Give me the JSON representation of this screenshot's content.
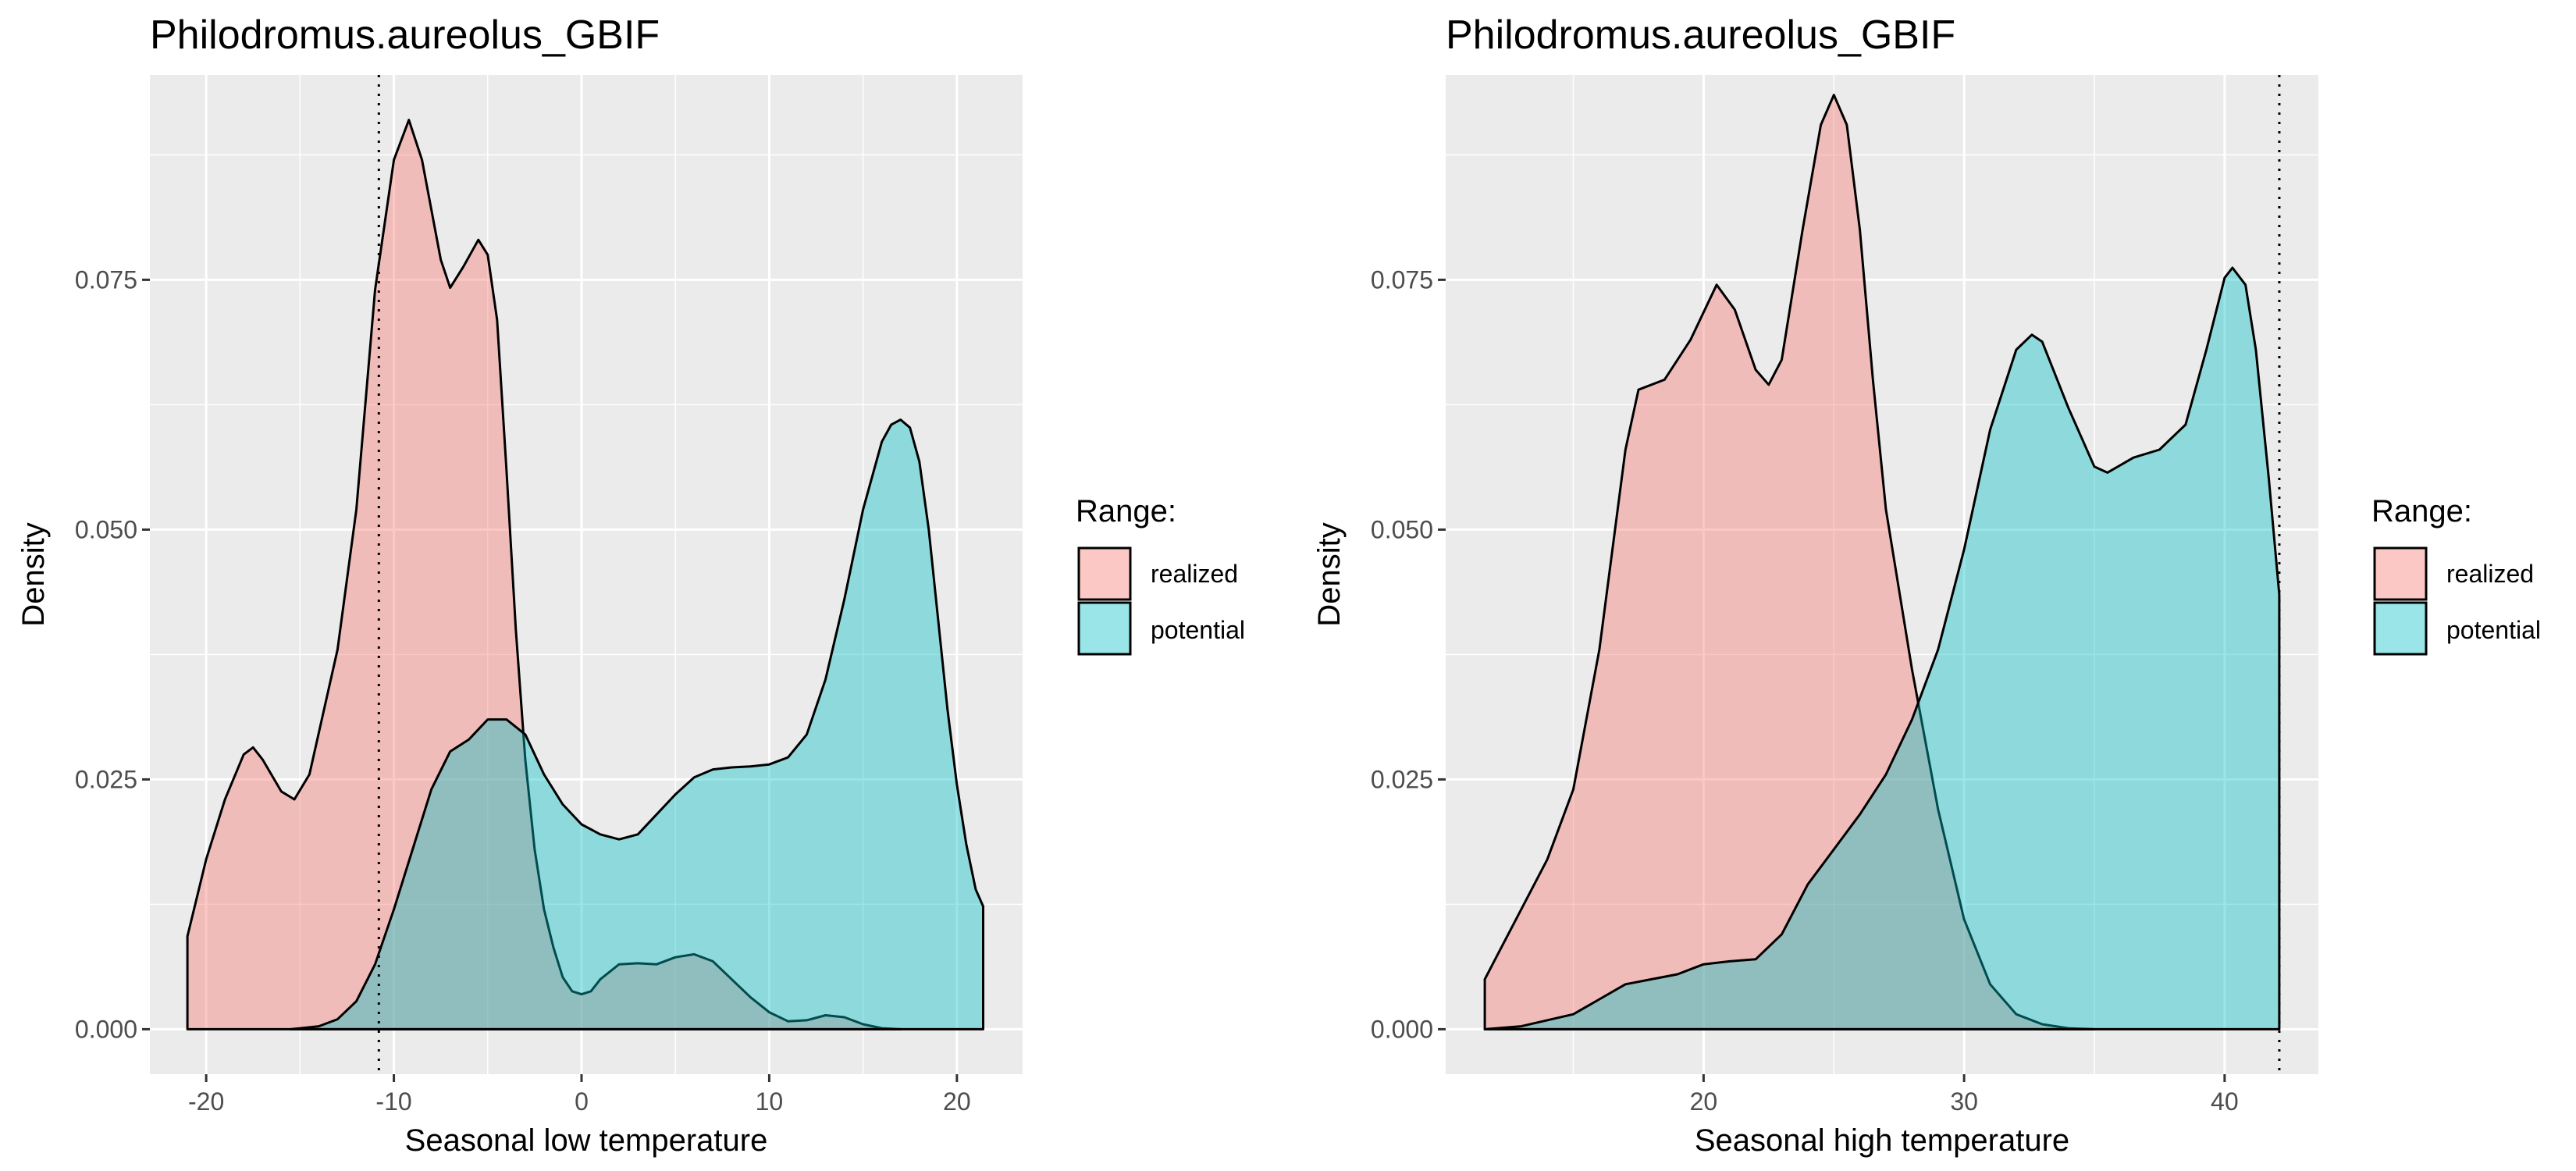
{
  "chart_data": [
    {
      "type": "area",
      "title": "Philodromus.aureolus_GBIF",
      "xlabel": "Seasonal low temperature",
      "ylabel": "Density",
      "xlim": [
        -23,
        23.5
      ],
      "ylim": [
        -0.0045,
        0.0955
      ],
      "x_ticks": [
        -20,
        -10,
        0,
        10,
        20
      ],
      "x_tick_labels": [
        "-20",
        "-10",
        "0",
        "10",
        "20"
      ],
      "y_ticks": [
        0,
        0.025,
        0.05,
        0.075
      ],
      "y_tick_labels": [
        "0.000",
        "0.025",
        "0.050",
        "0.075"
      ],
      "vline": -10.8,
      "grid": true,
      "legend": {
        "title": "Range:",
        "position": "right",
        "entries": [
          {
            "label": "realized",
            "color": "#F8766D"
          },
          {
            "label": "potential",
            "color": "#00BFC4"
          }
        ]
      },
      "series": [
        {
          "key": "realized",
          "color": "#F8766D",
          "points": [
            [
              -21,
              0.0093
            ],
            [
              -20,
              0.017
            ],
            [
              -19,
              0.023
            ],
            [
              -18,
              0.0275
            ],
            [
              -17.5,
              0.0282
            ],
            [
              -17,
              0.027
            ],
            [
              -16,
              0.0238
            ],
            [
              -15.3,
              0.023
            ],
            [
              -14.5,
              0.0255
            ],
            [
              -13,
              0.038
            ],
            [
              -12,
              0.052
            ],
            [
              -11,
              0.074
            ],
            [
              -10,
              0.087
            ],
            [
              -9.2,
              0.091
            ],
            [
              -8.5,
              0.087
            ],
            [
              -7.5,
              0.077
            ],
            [
              -7,
              0.0742
            ],
            [
              -6.3,
              0.0763
            ],
            [
              -5.5,
              0.079
            ],
            [
              -5,
              0.0775
            ],
            [
              -4.5,
              0.071
            ],
            [
              -4,
              0.056
            ],
            [
              -3.5,
              0.04
            ],
            [
              -3,
              0.027
            ],
            [
              -2.5,
              0.018
            ],
            [
              -2,
              0.012
            ],
            [
              -1.5,
              0.0082
            ],
            [
              -1,
              0.0052
            ],
            [
              -0.5,
              0.0038
            ],
            [
              0,
              0.0035
            ],
            [
              0.5,
              0.0038
            ],
            [
              1,
              0.005
            ],
            [
              2,
              0.0065
            ],
            [
              3,
              0.0066
            ],
            [
              4,
              0.0065
            ],
            [
              5,
              0.0072
            ],
            [
              6,
              0.0075
            ],
            [
              7,
              0.0068
            ],
            [
              8,
              0.005
            ],
            [
              9,
              0.0032
            ],
            [
              10,
              0.0017
            ],
            [
              11,
              0.0008
            ],
            [
              12,
              0.0009
            ],
            [
              13,
              0.0014
            ],
            [
              14,
              0.0012
            ],
            [
              15,
              0.0005
            ],
            [
              16,
              0.0001
            ],
            [
              17,
              0
            ]
          ]
        },
        {
          "key": "potential",
          "color": "#00BFC4",
          "points": [
            [
              -15.5,
              0
            ],
            [
              -14,
              0.0003
            ],
            [
              -13,
              0.001
            ],
            [
              -12,
              0.0028
            ],
            [
              -11,
              0.0065
            ],
            [
              -10,
              0.012
            ],
            [
              -9,
              0.018
            ],
            [
              -8,
              0.024
            ],
            [
              -7,
              0.0278
            ],
            [
              -6,
              0.029
            ],
            [
              -5,
              0.031
            ],
            [
              -4,
              0.031
            ],
            [
              -3,
              0.0295
            ],
            [
              -2,
              0.0255
            ],
            [
              -1,
              0.0225
            ],
            [
              0,
              0.0205
            ],
            [
              1,
              0.0195
            ],
            [
              2,
              0.019
            ],
            [
              3,
              0.0195
            ],
            [
              4,
              0.0215
            ],
            [
              5,
              0.0235
            ],
            [
              6,
              0.0252
            ],
            [
              7,
              0.026
            ],
            [
              8,
              0.0262
            ],
            [
              9,
              0.0263
            ],
            [
              10,
              0.0265
            ],
            [
              11,
              0.0272
            ],
            [
              12,
              0.0295
            ],
            [
              13,
              0.035
            ],
            [
              14,
              0.043
            ],
            [
              15,
              0.052
            ],
            [
              16,
              0.0588
            ],
            [
              16.5,
              0.0605
            ],
            [
              17,
              0.061
            ],
            [
              17.5,
              0.0602
            ],
            [
              18,
              0.0568
            ],
            [
              18.5,
              0.05
            ],
            [
              19,
              0.041
            ],
            [
              19.5,
              0.032
            ],
            [
              20,
              0.0245
            ],
            [
              20.5,
              0.0185
            ],
            [
              21,
              0.014
            ],
            [
              21.4,
              0.0123
            ]
          ]
        }
      ]
    },
    {
      "type": "area",
      "title": "Philodromus.aureolus_GBIF",
      "xlabel": "Seasonal high temperature",
      "ylabel": "Density",
      "xlim": [
        10.1,
        43.6
      ],
      "ylim": [
        -0.0045,
        0.0955
      ],
      "x_ticks": [
        20,
        30,
        40
      ],
      "x_tick_labels": [
        "20",
        "30",
        "40"
      ],
      "y_ticks": [
        0,
        0.025,
        0.05,
        0.075
      ],
      "y_tick_labels": [
        "0.000",
        "0.025",
        "0.050",
        "0.075"
      ],
      "vline": 42.1,
      "grid": true,
      "legend": {
        "title": "Range:",
        "position": "right",
        "entries": [
          {
            "label": "realized",
            "color": "#F8766D"
          },
          {
            "label": "potential",
            "color": "#00BFC4"
          }
        ]
      },
      "series": [
        {
          "key": "realized",
          "color": "#F8766D",
          "points": [
            [
              11.6,
              0.005
            ],
            [
              12,
              0.007
            ],
            [
              13,
              0.012
            ],
            [
              14,
              0.017
            ],
            [
              15,
              0.024
            ],
            [
              16,
              0.038
            ],
            [
              17,
              0.058
            ],
            [
              17.5,
              0.064
            ],
            [
              18.5,
              0.065
            ],
            [
              19.5,
              0.069
            ],
            [
              20.5,
              0.0745
            ],
            [
              21.2,
              0.072
            ],
            [
              22,
              0.066
            ],
            [
              22.5,
              0.0645
            ],
            [
              23,
              0.067
            ],
            [
              23.8,
              0.08
            ],
            [
              24.5,
              0.0905
            ],
            [
              25,
              0.0935
            ],
            [
              25.5,
              0.0905
            ],
            [
              26,
              0.08
            ],
            [
              26.5,
              0.065
            ],
            [
              27,
              0.052
            ],
            [
              28,
              0.036
            ],
            [
              29,
              0.022
            ],
            [
              30,
              0.011
            ],
            [
              31,
              0.0045
            ],
            [
              32,
              0.0015
            ],
            [
              33,
              0.0005
            ],
            [
              34,
              0.0001
            ],
            [
              35,
              0
            ]
          ]
        },
        {
          "key": "potential",
          "color": "#00BFC4",
          "points": [
            [
              11.6,
              0
            ],
            [
              13,
              0.0003
            ],
            [
              15,
              0.0015
            ],
            [
              16,
              0.003
            ],
            [
              17,
              0.0045
            ],
            [
              18,
              0.005
            ],
            [
              19,
              0.0055
            ],
            [
              20,
              0.0065
            ],
            [
              21,
              0.0068
            ],
            [
              22,
              0.007
            ],
            [
              23,
              0.0095
            ],
            [
              24,
              0.0145
            ],
            [
              25,
              0.018
            ],
            [
              26,
              0.0215
            ],
            [
              27,
              0.0255
            ],
            [
              28,
              0.031
            ],
            [
              29,
              0.038
            ],
            [
              30,
              0.048
            ],
            [
              31,
              0.06
            ],
            [
              32,
              0.068
            ],
            [
              32.6,
              0.0695
            ],
            [
              33,
              0.0688
            ],
            [
              34,
              0.0622
            ],
            [
              35,
              0.0563
            ],
            [
              35.5,
              0.0557
            ],
            [
              36.5,
              0.0572
            ],
            [
              37.5,
              0.058
            ],
            [
              38.5,
              0.0605
            ],
            [
              39.3,
              0.068
            ],
            [
              40,
              0.0752
            ],
            [
              40.3,
              0.0762
            ],
            [
              40.8,
              0.0745
            ],
            [
              41.2,
              0.068
            ],
            [
              41.7,
              0.055
            ],
            [
              42.1,
              0.0435
            ]
          ]
        }
      ]
    }
  ]
}
